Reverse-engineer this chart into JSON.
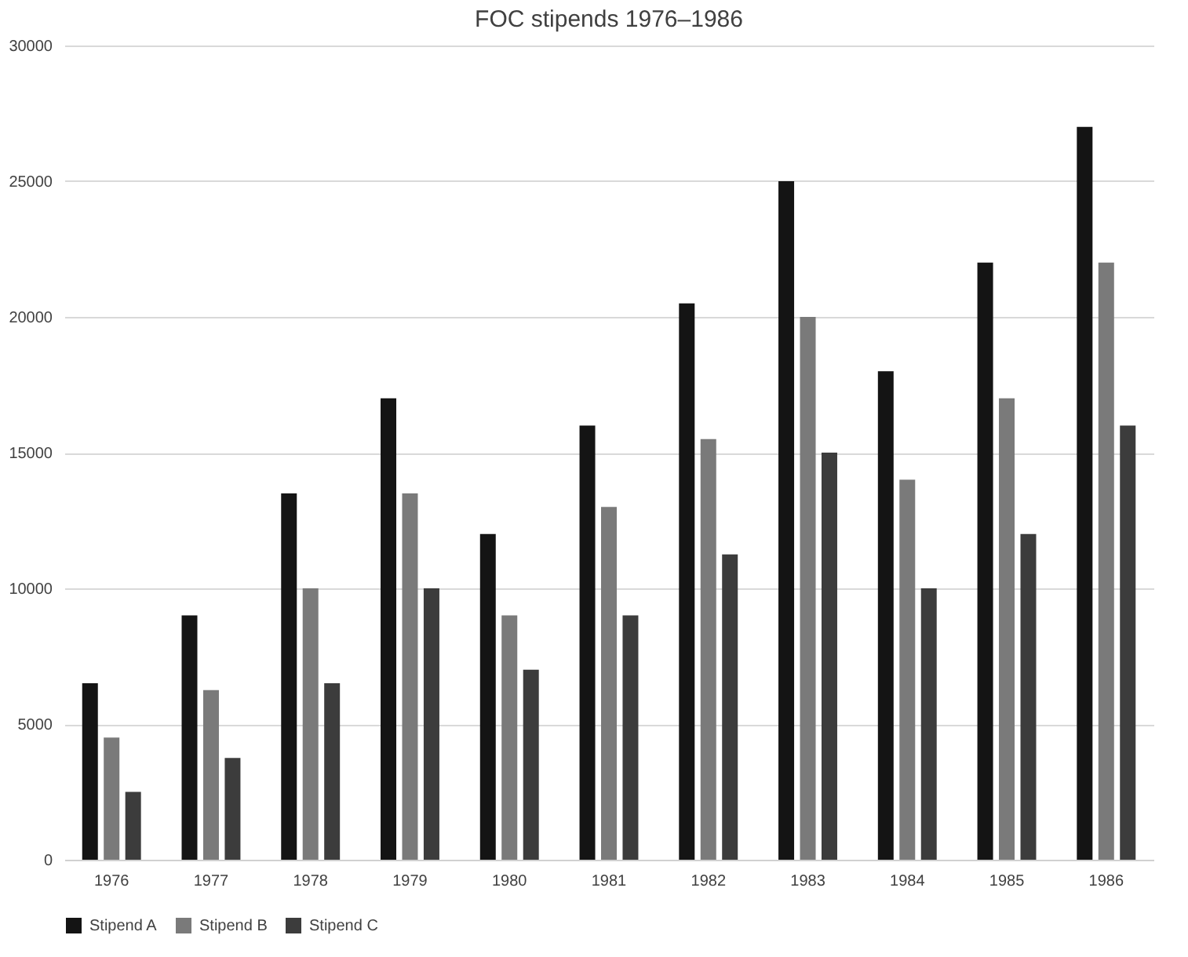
{
  "chart_data": {
    "type": "bar",
    "title": "FOC stipends 1976–1986",
    "categories": [
      "1976",
      "1977",
      "1978",
      "1979",
      "1980",
      "1981",
      "1982",
      "1983",
      "1984",
      "1985",
      "1986"
    ],
    "series": [
      {
        "name": "Stipend A",
        "color": "#141414",
        "values": [
          6500,
          9000,
          13500,
          17000,
          12000,
          16000,
          20500,
          25000,
          18000,
          22000,
          27000
        ]
      },
      {
        "name": "Stipend B",
        "color": "#7a7a7a",
        "values": [
          4500,
          6250,
          10000,
          13500,
          9000,
          13000,
          15500,
          20000,
          14000,
          17000,
          22000
        ]
      },
      {
        "name": "Stipend C",
        "color": "#3c3c3c",
        "values": [
          2500,
          3750,
          6500,
          10000,
          7000,
          9000,
          11250,
          15000,
          10000,
          12000,
          16000
        ]
      }
    ],
    "ylim": [
      0,
      30000
    ],
    "yticks": [
      0,
      5000,
      10000,
      15000,
      20000,
      25000,
      30000
    ],
    "grid": "y",
    "legend": "bottom"
  }
}
